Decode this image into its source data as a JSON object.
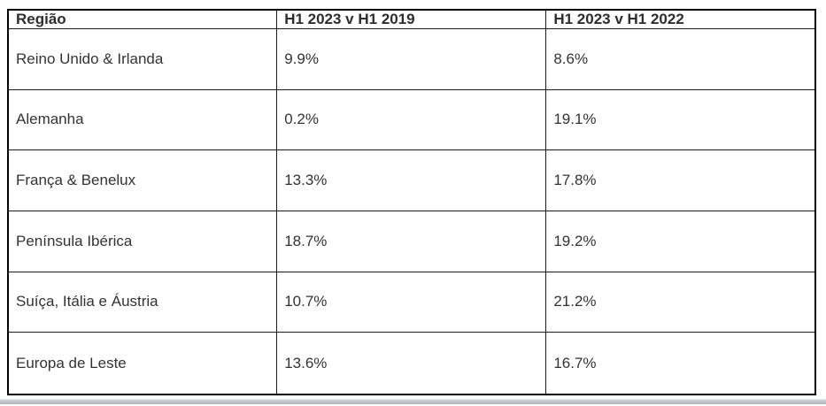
{
  "table": {
    "columns": [
      "Região",
      "H1 2023 v H1 2019",
      "H1 2023 v H1 2022"
    ],
    "rows": [
      {
        "region": "Reino Unido & Irlanda",
        "h1_2023_v_2019": "9.9%",
        "h1_2023_v_2022": "8.6%"
      },
      {
        "region": "Alemanha",
        "h1_2023_v_2019": "0.2%",
        "h1_2023_v_2022": "19.1%"
      },
      {
        "region": "França & Benelux",
        "h1_2023_v_2019": "13.3%",
        "h1_2023_v_2022": "17.8%"
      },
      {
        "region": "Península Ibérica",
        "h1_2023_v_2019": "18.7%",
        "h1_2023_v_2022": "19.2%"
      },
      {
        "region": "Suíça, Itália e Áustria",
        "h1_2023_v_2019": "10.7%",
        "h1_2023_v_2022": "21.2%"
      },
      {
        "region": "Europa de Leste",
        "h1_2023_v_2019": "13.6%",
        "h1_2023_v_2022": "16.7%"
      }
    ]
  },
  "colors": {
    "table_border": "#000000",
    "cell_border": "#1c1c1c",
    "text": "#333333",
    "bottom_edge_bar": "#b0b5bb",
    "background": "#ffffff"
  }
}
